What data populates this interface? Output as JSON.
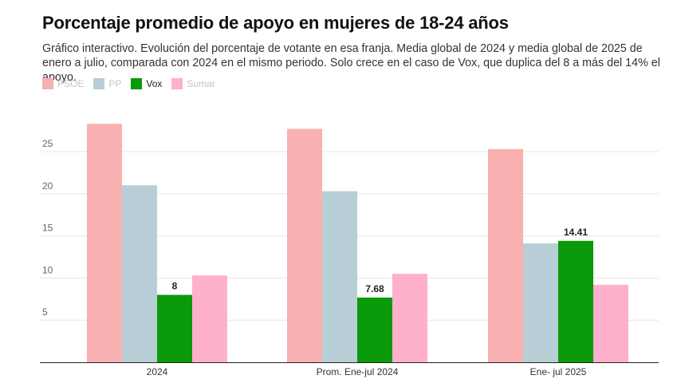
{
  "title": "Porcentaje promedio de apoyo en mujeres de 18-24 años",
  "subtitle": "Gráfico interactivo. Evolución del porcentaje de votante en esa franja. Media global de 2024 y media global de 2025 de enero a julio, comparada con 2024 en el mismo periodo. Solo crece en el caso de Vox, que duplica del 8 a más del 14% el apoyo.",
  "legend": [
    {
      "label": "PSOE",
      "color": "#f8b0b0",
      "active": false
    },
    {
      "label": "PP",
      "color": "#b8ced6",
      "active": false
    },
    {
      "label": "Vox",
      "color": "#0a9a0a",
      "active": true
    },
    {
      "label": "Sumar",
      "color": "#ffb0cc",
      "active": false
    }
  ],
  "chart_data": {
    "type": "bar",
    "categories": [
      "2024",
      "Prom. Ene-jul 2024",
      "Ene- jul 2025"
    ],
    "series": [
      {
        "name": "PSOE",
        "color": "#f8b0b0",
        "values": [
          28.3,
          27.7,
          25.3
        ]
      },
      {
        "name": "PP",
        "color": "#b8ced6",
        "values": [
          21.0,
          20.3,
          14.1
        ]
      },
      {
        "name": "Vox",
        "color": "#0a9a0a",
        "values": [
          8,
          7.68,
          14.41
        ],
        "labels": [
          "8",
          "7.68",
          "14.41"
        ]
      },
      {
        "name": "Sumar",
        "color": "#ffb0cc",
        "values": [
          10.3,
          10.5,
          9.2
        ]
      }
    ],
    "yticks": [
      "5",
      "10",
      "15",
      "20",
      "25"
    ],
    "ylim": [
      0,
      29
    ],
    "grid": true,
    "legend_position": "top-left"
  }
}
